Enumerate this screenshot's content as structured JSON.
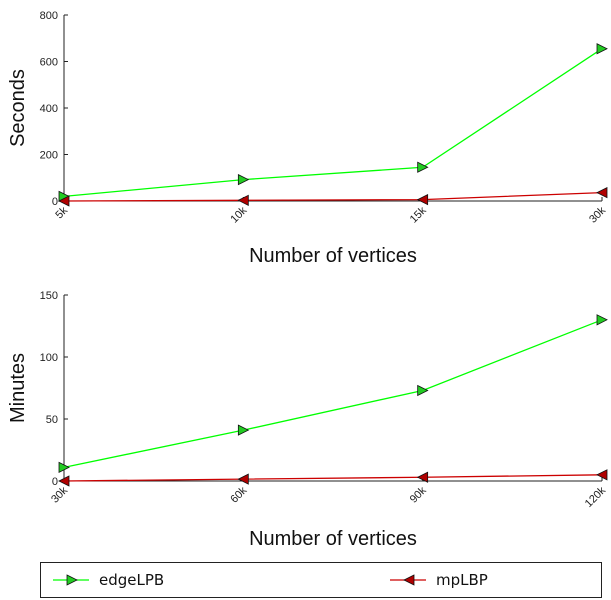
{
  "colors": {
    "edge": "#00ff00",
    "edge_marker": "#22cc22",
    "mp": "#cc0000",
    "mp_marker": "#b00000",
    "axis": "#222222"
  },
  "chart_data": [
    {
      "type": "line",
      "categories": [
        "5k",
        "10k",
        "15k",
        "30k"
      ],
      "xlabel": "Number of vertices",
      "ylabel": "Seconds",
      "ylim": [
        0,
        800
      ],
      "yticks": [
        "0",
        "200",
        "400",
        "600",
        "800"
      ],
      "series": [
        {
          "name": "edgeLPB",
          "values": [
            20,
            92,
            145,
            655
          ]
        },
        {
          "name": "mpLBP",
          "values": [
            0,
            3,
            6,
            36
          ]
        }
      ]
    },
    {
      "type": "line",
      "categories": [
        "30k",
        "60k",
        "90k",
        "120k"
      ],
      "xlabel": "Number of vertices",
      "ylabel": "Minutes",
      "ylim": [
        0,
        150
      ],
      "yticks": [
        "0",
        "50",
        "100",
        "150"
      ],
      "series": [
        {
          "name": "edgeLPB",
          "values": [
            11,
            41,
            73,
            130
          ]
        },
        {
          "name": "mpLBP",
          "values": [
            0,
            1.5,
            3,
            5
          ]
        }
      ]
    }
  ],
  "legend": {
    "items": [
      {
        "label": "edgeLPB",
        "series": "edge"
      },
      {
        "label": "mpLBP",
        "series": "mp"
      }
    ]
  }
}
